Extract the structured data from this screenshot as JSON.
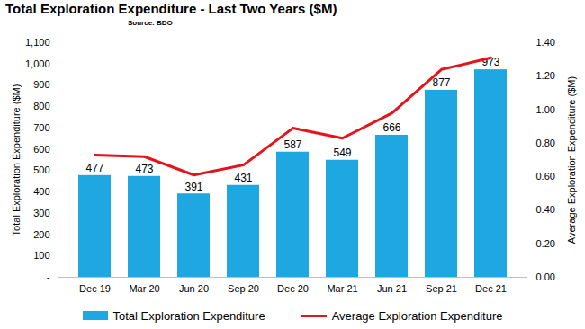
{
  "chart_data": {
    "type": "bar",
    "title": "Total Exploration Expenditure - Last Two Years ($M)",
    "annotations": [
      "Source: BDO"
    ],
    "y_label": "Total Exploration Expenditure ($M)",
    "y2_label": "Average Exploration Expenditure ($M)",
    "categories": [
      "Dec 19",
      "Mar 20",
      "Jun 20",
      "Sep 20",
      "Dec 20",
      "Mar 21",
      "Jun 21",
      "Sep 21",
      "Dec 21"
    ],
    "series": [
      {
        "name": "Total Exploration Expenditure",
        "type": "bar",
        "color": "#1ea7e1",
        "values": [
          477,
          473,
          391,
          431,
          587,
          549,
          666,
          877,
          973
        ],
        "data_labels": true
      },
      {
        "name": "Average Exploration Expenditure",
        "type": "line",
        "color": "#e3141b",
        "axis": "y2",
        "values": [
          0.73,
          0.72,
          0.61,
          0.67,
          0.89,
          0.83,
          0.98,
          1.24,
          1.31
        ]
      }
    ],
    "ylim": [
      0,
      1100
    ],
    "yticks": [
      {
        "value": 0,
        "label": "-"
      },
      100,
      200,
      300,
      400,
      500,
      600,
      700,
      800,
      900,
      {
        "value": 1000,
        "label": "1,000"
      },
      {
        "value": 1100,
        "label": "1,100"
      }
    ],
    "y2lim": [
      0,
      1.4
    ],
    "y2ticks": [
      {
        "value": 0,
        "label": "0.00"
      },
      {
        "value": 0.2,
        "label": "0.20"
      },
      {
        "value": 0.4,
        "label": "0.40"
      },
      {
        "value": 0.6,
        "label": "0.60"
      },
      {
        "value": 0.8,
        "label": "0.80"
      },
      {
        "value": 1,
        "label": "1.00"
      },
      {
        "value": 1.2,
        "label": "1.20"
      },
      {
        "value": 1.4,
        "label": "1.40"
      }
    ],
    "legend": "bottom",
    "grid": false
  }
}
